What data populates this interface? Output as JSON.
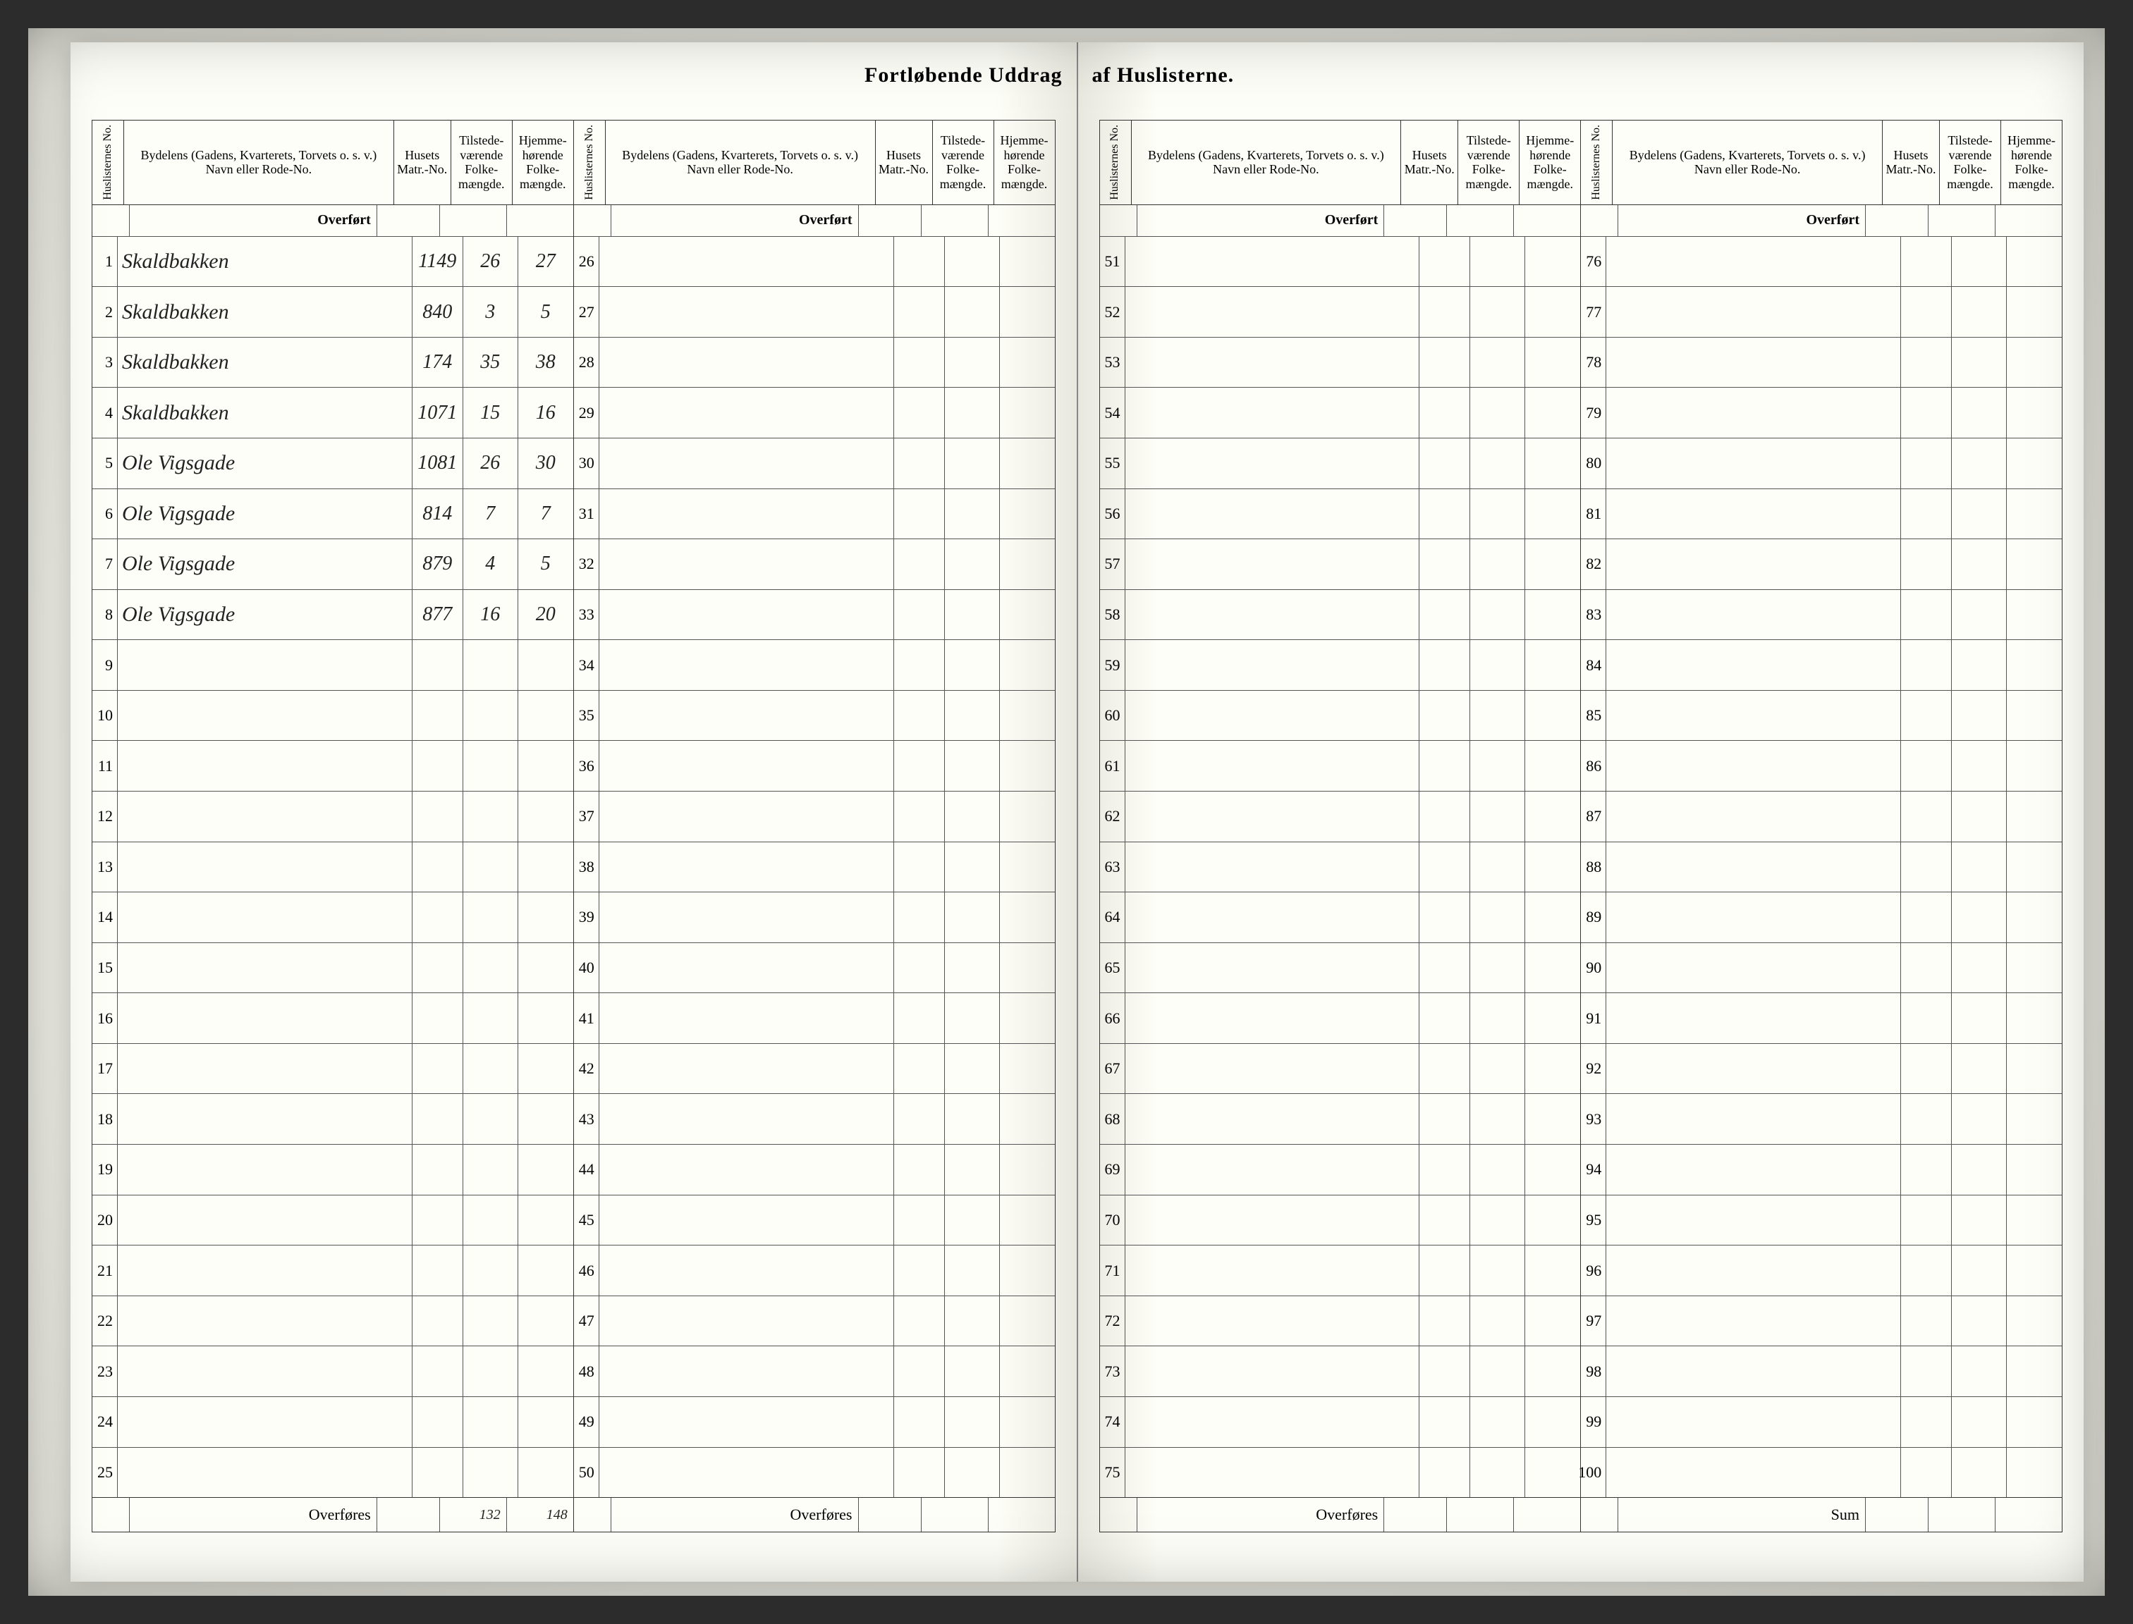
{
  "title_left": "Fortløbende Uddrag",
  "title_right": "af Huslisterne.",
  "title_fontsize": 30,
  "headers": {
    "no": "Huslisternes No.",
    "name": "Bydelens (Gadens, Kvarterets, Torvets o. s. v.) Navn eller Rode-No.",
    "matr": "Husets Matr.-No.",
    "tilst": "Tilstede-værende Folke-mængde.",
    "hjem": "Hjemme-hørende Folke-mængde."
  },
  "overfort_label": "Overført",
  "overfores_label": "Overføres",
  "sum_label": "Sum",
  "entries": [
    {
      "no": "1",
      "name": "Skaldbakken",
      "matr": "1149",
      "tilst": "26",
      "hjem": "27"
    },
    {
      "no": "2",
      "name": "Skaldbakken",
      "matr": "840",
      "tilst": "3",
      "hjem": "5"
    },
    {
      "no": "3",
      "name": "Skaldbakken",
      "matr": "174",
      "tilst": "35",
      "hjem": "38"
    },
    {
      "no": "4",
      "name": "Skaldbakken",
      "matr": "1071",
      "tilst": "15",
      "hjem": "16"
    },
    {
      "no": "5",
      "name": "Ole Vigsgade",
      "matr": "1081",
      "tilst": "26",
      "hjem": "30"
    },
    {
      "no": "6",
      "name": "Ole Vigsgade",
      "matr": "814",
      "tilst": "7",
      "hjem": "7"
    },
    {
      "no": "7",
      "name": "Ole Vigsgade",
      "matr": "879",
      "tilst": "4",
      "hjem": "5"
    },
    {
      "no": "8",
      "name": "Ole Vigsgade",
      "matr": "877",
      "tilst": "16",
      "hjem": "20"
    }
  ],
  "totals": {
    "tilst": "132",
    "hjem": "148"
  },
  "section_ranges": [
    [
      1,
      25
    ],
    [
      26,
      50
    ],
    [
      51,
      75
    ],
    [
      76,
      100
    ]
  ],
  "colors": {
    "paper": "#fefef8",
    "ink": "#222222",
    "rule": "#555555",
    "heavy_rule": "#333333",
    "scan_bg": "#2c2c2c"
  },
  "typography": {
    "header_fontsize": 18,
    "rownum_fontsize": 22,
    "hand_fontsize": 30
  }
}
